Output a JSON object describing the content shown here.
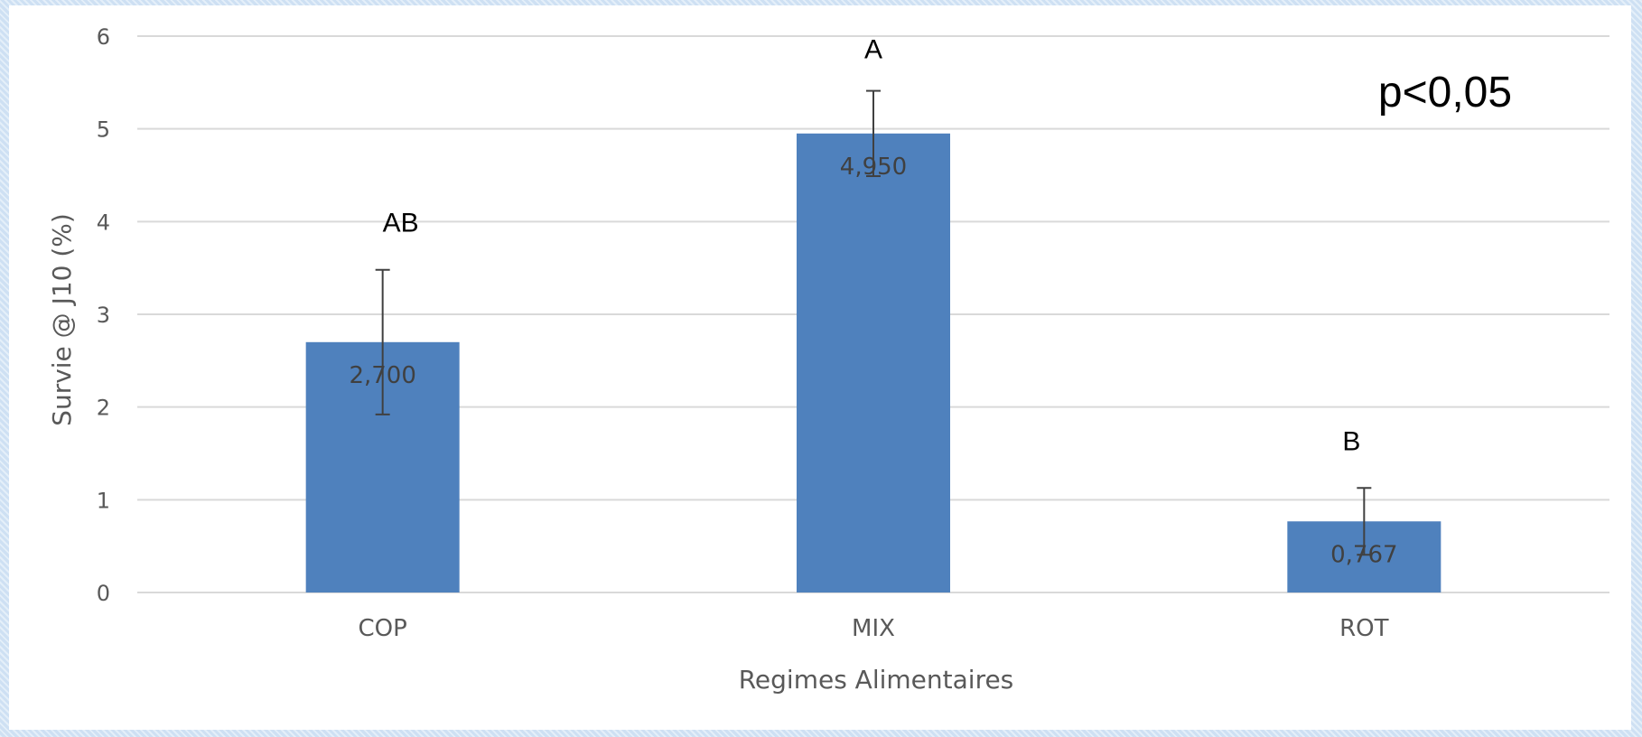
{
  "chart_data": {
    "type": "bar",
    "title": "",
    "xlabel": "Regimes Alimentaires",
    "ylabel": "Survie @ J10 (%)",
    "ylim": [
      0,
      6
    ],
    "yticks": [
      "0",
      "1",
      "2",
      "3",
      "4",
      "5",
      "6"
    ],
    "categories": [
      "COP",
      "MIX",
      "ROT"
    ],
    "values": [
      2.7,
      4.95,
      0.767
    ],
    "value_labels": [
      "2,700",
      "4,950",
      "0,767"
    ],
    "error_bars": [
      0.78,
      0.46,
      0.36
    ],
    "significance_letters": [
      "AB",
      "A",
      "B"
    ],
    "grid": true,
    "bar_color": "#4f81bd",
    "annotation": "p<0,05"
  }
}
